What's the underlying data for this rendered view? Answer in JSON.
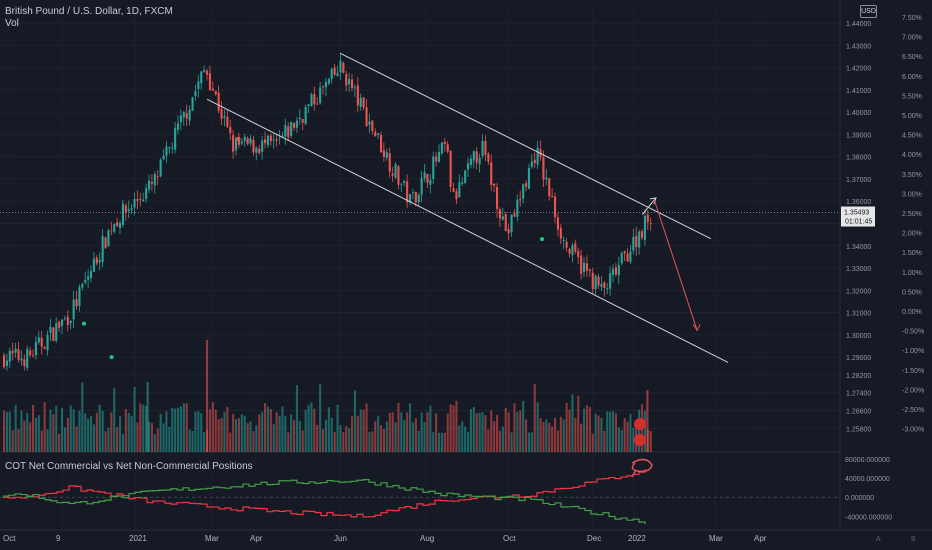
{
  "legend": {
    "symbol_title": "British Pound / U.S. Dollar, 1D, FXCM",
    "volume_label": "Vol"
  },
  "currency_badge": "USD",
  "cot_indicator_title": "COT Net Commercial vs Net Non-Commercial Positions",
  "colors": {
    "background": "#161a25",
    "up": "#26a69a",
    "down": "#ef5350",
    "bright_up": "#26c281",
    "commercial_line": "#f23645",
    "non_commercial_line": "#43a047",
    "channel": "#d1d4dc",
    "arrow": "#e8525a",
    "axis_text": "#9598a1",
    "price_label_bg": "#e6e6e6"
  },
  "chart_data": [
    {
      "type": "candlestick",
      "title": "British Pound / U.S. Dollar, 1D, FXCM",
      "x_ticks": [
        "Oct",
        "9",
        "2021",
        "Mar",
        "Apr",
        "Jun",
        "Aug",
        "Oct",
        "Dec",
        "2022",
        "Mar",
        "Apr"
      ],
      "y_ticks": [
        "1.44000",
        "1.43000",
        "1.42000",
        "1.41000",
        "1.40000",
        "1.39000",
        "1.38000",
        "1.37000",
        "1.36000",
        "1.35000",
        "1.34000",
        "1.33000",
        "1.32000",
        "1.31000",
        "1.30000",
        "1.29000",
        "1.28200",
        "1.27400",
        "1.26600",
        "1.25800"
      ],
      "pct_ticks": [
        "7.50%",
        "7.00%",
        "6.50%",
        "6.00%",
        "5.50%",
        "5.00%",
        "4.50%",
        "4.00%",
        "3.50%",
        "3.00%",
        "2.50%",
        "2.00%",
        "1.50%",
        "1.00%",
        "0.50%",
        "0.00%",
        "-0.50%",
        "-1.00%",
        "-1.50%",
        "-2.00%",
        "-2.50%",
        "-3.00%"
      ],
      "y_range": [
        1.255,
        1.445
      ],
      "last_price": "1.35493",
      "countdown": "01:01:45",
      "close_path_approx": [
        {
          "date": "2020-10",
          "close": 1.29
        },
        {
          "date": "2020-11",
          "close": 1.31
        },
        {
          "date": "2020-12",
          "close": 1.35
        },
        {
          "date": "2021-01",
          "close": 1.368
        },
        {
          "date": "2021-02-24",
          "close": 1.42
        },
        {
          "date": "2021-03",
          "close": 1.385
        },
        {
          "date": "2021-04",
          "close": 1.385
        },
        {
          "date": "2021-06-01",
          "close": 1.42
        },
        {
          "date": "2021-07-20",
          "close": 1.36
        },
        {
          "date": "2021-08",
          "close": 1.385
        },
        {
          "date": "2021-08-20",
          "close": 1.36
        },
        {
          "date": "2021-09-10",
          "close": 1.385
        },
        {
          "date": "2021-09-29",
          "close": 1.345
        },
        {
          "date": "2021-10-20",
          "close": 1.383
        },
        {
          "date": "2021-11-10",
          "close": 1.34
        },
        {
          "date": "2021-12-08",
          "close": 1.319
        },
        {
          "date": "2022-01-13",
          "close": 1.3549
        }
      ],
      "annotations": [
        "descending parallel channel",
        "projected move up toward 1.36 then down toward 1.30"
      ]
    },
    {
      "type": "volume",
      "title": "Vol"
    },
    {
      "type": "line",
      "title": "COT Net Commercial vs Net Non-Commercial Positions",
      "y_ticks": [
        "80000.000000",
        "40000.000000",
        "0.000000",
        "-40000.000000"
      ],
      "y_range": [
        -60000,
        90000
      ],
      "series": [
        {
          "color": "#f23645",
          "path_approx": [
            {
              "date": "2020-10",
              "value": 0
            },
            {
              "date": "2020-11",
              "value": 20000
            },
            {
              "date": "2021-01",
              "value": -10000
            },
            {
              "date": "2021-04",
              "value": -30000
            },
            {
              "date": "2021-06",
              "value": -40000
            },
            {
              "date": "2021-08",
              "value": -5000
            },
            {
              "date": "2021-10",
              "value": 5000
            },
            {
              "date": "2021-12",
              "value": 40000
            },
            {
              "date": "2022-01",
              "value": 60000
            }
          ]
        },
        {
          "color": "#43a047",
          "path_approx": [
            {
              "date": "2020-10",
              "value": 5000
            },
            {
              "date": "2020-11",
              "value": -15000
            },
            {
              "date": "2021-01",
              "value": 12000
            },
            {
              "date": "2021-04",
              "value": 30000
            },
            {
              "date": "2021-06",
              "value": 35000
            },
            {
              "date": "2021-08",
              "value": 5000
            },
            {
              "date": "2021-10",
              "value": -5000
            },
            {
              "date": "2021-12",
              "value": -40000
            },
            {
              "date": "2022-01",
              "value": -55000
            }
          ]
        }
      ]
    }
  ]
}
